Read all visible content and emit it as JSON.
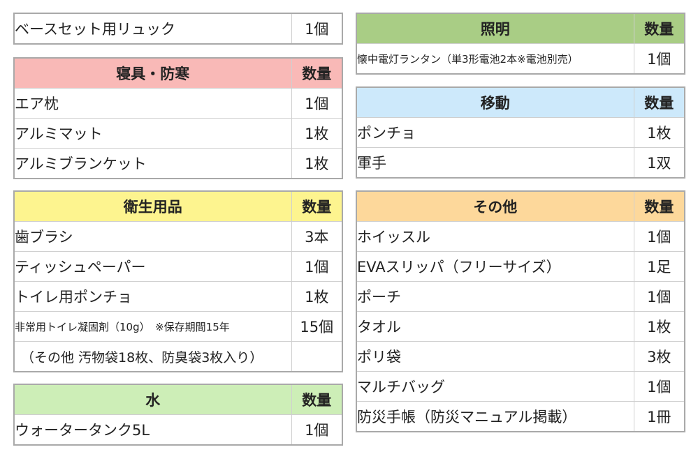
{
  "backpack": {
    "name": "ベースセット用リュック",
    "qty": "1個"
  },
  "sections": {
    "bedding": {
      "title": "寝具・防寒",
      "qty_header": "数量",
      "color": "#f9b9b7",
      "items": [
        {
          "name": "エア枕",
          "qty": "1個"
        },
        {
          "name": "アルミマット",
          "qty": "1枚"
        },
        {
          "name": "アルミブランケット",
          "qty": "1枚"
        }
      ]
    },
    "hygiene": {
      "title": "衛生用品",
      "qty_header": "数量",
      "color": "#fdf48f",
      "items": [
        {
          "name": "歯ブラシ",
          "qty": "3本"
        },
        {
          "name": "ティッシュペーパー",
          "qty": "1個"
        },
        {
          "name": "トイレ用ポンチョ",
          "qty": "1枚"
        },
        {
          "name": "非常用トイレ凝固剤（10g）　※保存期間15年",
          "qty": "15個"
        }
      ],
      "note": "（その他 汚物袋18枚、防臭袋3枚入り）"
    },
    "water": {
      "title": "水",
      "qty_header": "数量",
      "color": "#cdeeb7",
      "items": [
        {
          "name": "ウォータータンク5L",
          "qty": "1個"
        }
      ]
    },
    "lighting": {
      "title": "照明",
      "qty_header": "数量",
      "color": "#a9cd85",
      "items": [
        {
          "name": "懐中電灯ランタン（単3形電池2本※電池別売）",
          "qty": "1個"
        }
      ]
    },
    "movement": {
      "title": "移動",
      "qty_header": "数量",
      "color": "#cde9fb",
      "items": [
        {
          "name": "ポンチョ",
          "qty": "1枚"
        },
        {
          "name": "軍手",
          "qty": "1双"
        }
      ]
    },
    "other": {
      "title": "その他",
      "qty_header": "数量",
      "color": "#fdd89b",
      "items": [
        {
          "name": "ホイッスル",
          "qty": "1個"
        },
        {
          "name": "EVAスリッパ（フリーサイズ）",
          "qty": "1足"
        },
        {
          "name": "ポーチ",
          "qty": "1個"
        },
        {
          "name": "タオル",
          "qty": "1枚"
        },
        {
          "name": "ポリ袋",
          "qty": "3枚"
        },
        {
          "name": "マルチバッグ",
          "qty": "1個"
        },
        {
          "name": "防災手帳（防災マニュアル掲載）",
          "qty": "1冊"
        }
      ]
    }
  }
}
